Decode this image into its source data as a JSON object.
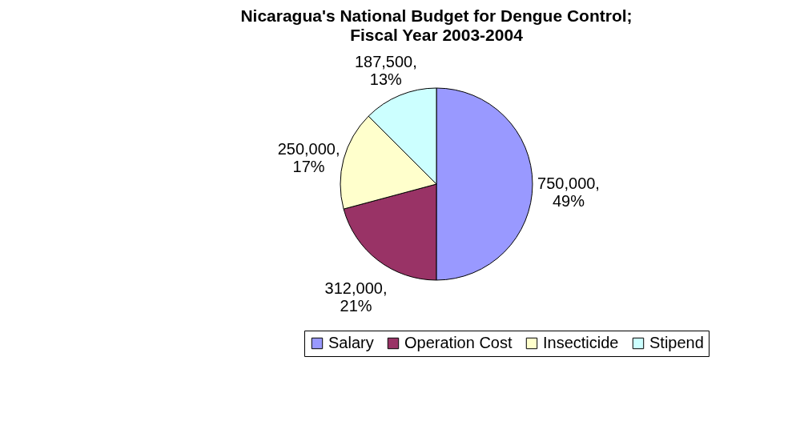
{
  "chart_data": {
    "type": "pie",
    "title": "Nicaragua's National Budget for Dengue Control;",
    "subtitle": "Fiscal Year 2003-2004",
    "categories": [
      "Salary",
      "Operation Cost",
      "Insecticide",
      "Stipend"
    ],
    "values": [
      750000,
      312000,
      250000,
      187500
    ],
    "colors": [
      "#9999ff",
      "#993366",
      "#ffffcc",
      "#ccffff"
    ],
    "value_labels": [
      "750,000, 49%",
      "312,000, 21%",
      "250,000, 17%",
      "187,500, 13%"
    ],
    "legend": "bottom"
  }
}
